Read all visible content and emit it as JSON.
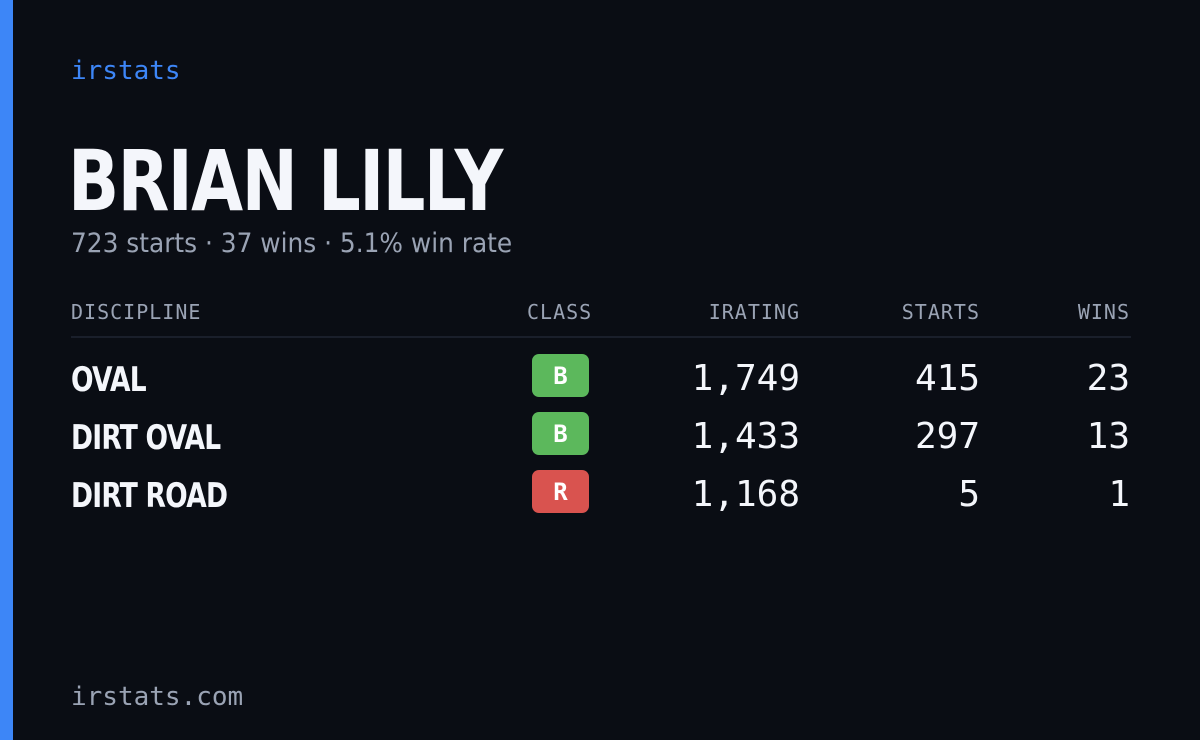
{
  "brand": "irstats",
  "player": {
    "name": "BRIAN LILLY",
    "summary": "723 starts · 37 wins · 5.1% win rate"
  },
  "table": {
    "headers": {
      "discipline": "DISCIPLINE",
      "class": "CLASS",
      "irating": "IRATING",
      "starts": "STARTS",
      "wins": "WINS"
    },
    "rows": [
      {
        "discipline": "OVAL",
        "class": "B",
        "class_color": "#5cb85c",
        "irating": "1,749",
        "starts": "415",
        "wins": "23"
      },
      {
        "discipline": "DIRT OVAL",
        "class": "B",
        "class_color": "#5cb85c",
        "irating": "1,433",
        "starts": "297",
        "wins": "13"
      },
      {
        "discipline": "DIRT ROAD",
        "class": "R",
        "class_color": "#d9534f",
        "irating": "1,168",
        "starts": "5",
        "wins": "1"
      }
    ]
  },
  "footer": {
    "domain": "irstats.com"
  },
  "colors": {
    "accent": "#3d86f7",
    "background": "#0a0d14",
    "text": "#f4f6fb",
    "muted": "#9aa3b4"
  }
}
